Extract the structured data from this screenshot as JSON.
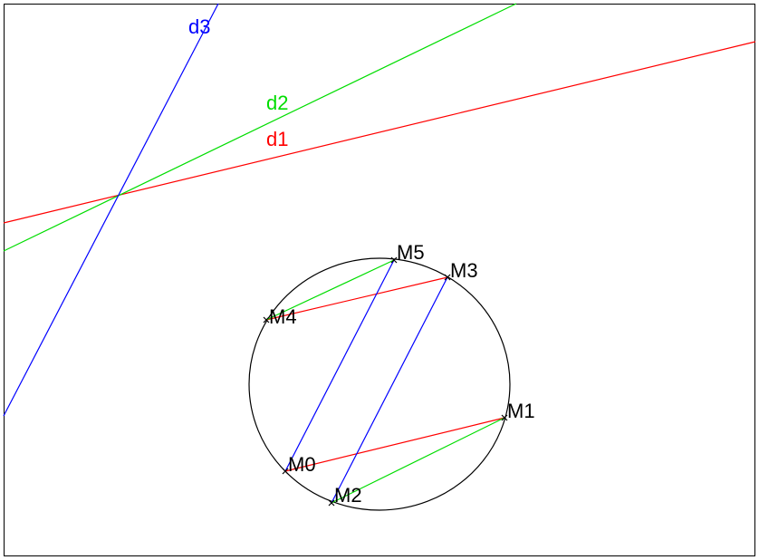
{
  "colors": {
    "red": "#ff0000",
    "green": "#00dd00",
    "blue": "#0000ff",
    "black": "#000000"
  },
  "lines": [
    {
      "id": "d1",
      "label": "d1",
      "color": "red"
    },
    {
      "id": "d2",
      "label": "d2",
      "color": "green"
    },
    {
      "id": "d3",
      "label": "d3",
      "color": "blue"
    }
  ],
  "points": [
    {
      "id": "M0",
      "label": "M0"
    },
    {
      "id": "M1",
      "label": "M1"
    },
    {
      "id": "M2",
      "label": "M2"
    },
    {
      "id": "M3",
      "label": "M3"
    },
    {
      "id": "M4",
      "label": "M4"
    },
    {
      "id": "M5",
      "label": "M5"
    }
  ],
  "segments": [
    {
      "from": "M0",
      "to": "M1",
      "color": "red"
    },
    {
      "from": "M1",
      "to": "M2",
      "color": "green"
    },
    {
      "from": "M2",
      "to": "M3",
      "color": "blue"
    },
    {
      "from": "M3",
      "to": "M4",
      "color": "red"
    },
    {
      "from": "M4",
      "to": "M5",
      "color": "green"
    },
    {
      "from": "M5",
      "to": "M0",
      "color": "blue"
    }
  ]
}
